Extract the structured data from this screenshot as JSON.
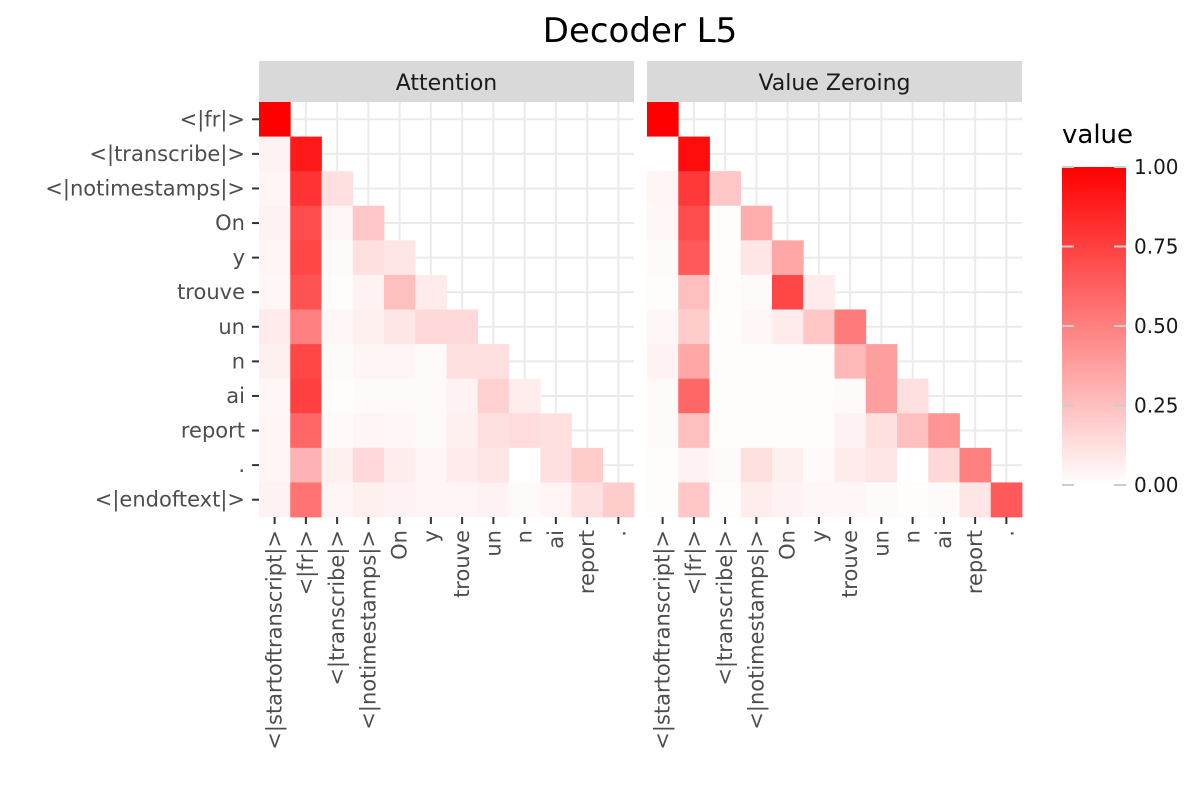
{
  "chart_data": {
    "type": "heatmap",
    "title": "Decoder L5",
    "legend_title": "value",
    "legend_ticks": [
      "1.00",
      "0.75",
      "0.50",
      "0.25",
      "0.00"
    ],
    "legend_tick_values": [
      1.0,
      0.75,
      0.5,
      0.25,
      0.0
    ],
    "color_low": "#ffffff",
    "color_high": "#ff0000",
    "value_range": [
      0,
      1
    ],
    "y_labels": [
      "<|fr|>",
      "<|transcribe|>",
      "<|notimestamps|>",
      "On",
      "y",
      "trouve",
      "un",
      "n",
      "ai",
      "report",
      ".",
      "<|endoftext|>"
    ],
    "x_labels": [
      "<|startoftranscript|>",
      "<|fr|>",
      "<|transcribe|>",
      "<|notimestamps|>",
      "On",
      "y",
      "trouve",
      "un",
      "n",
      "ai",
      "report",
      "."
    ],
    "panels": [
      {
        "name": "Attention",
        "values": [
          [
            1.0
          ],
          [
            0.05,
            0.9
          ],
          [
            0.04,
            0.8,
            0.12
          ],
          [
            0.05,
            0.7,
            0.03,
            0.22
          ],
          [
            0.04,
            0.72,
            0.02,
            0.12,
            0.1
          ],
          [
            0.03,
            0.68,
            0.01,
            0.05,
            0.25,
            0.08
          ],
          [
            0.08,
            0.5,
            0.03,
            0.06,
            0.1,
            0.15,
            0.15
          ],
          [
            0.06,
            0.72,
            0.02,
            0.04,
            0.04,
            0.02,
            0.12,
            0.12
          ],
          [
            0.03,
            0.75,
            0.01,
            0.02,
            0.02,
            0.02,
            0.05,
            0.18,
            0.07
          ],
          [
            0.04,
            0.6,
            0.02,
            0.04,
            0.03,
            0.02,
            0.06,
            0.12,
            0.14,
            0.12
          ],
          [
            0.04,
            0.3,
            0.06,
            0.15,
            0.07,
            0.04,
            0.08,
            0.1,
            0.0,
            0.12,
            0.2
          ],
          [
            0.05,
            0.55,
            0.04,
            0.06,
            0.05,
            0.04,
            0.04,
            0.05,
            0.02,
            0.04,
            0.12,
            0.2
          ]
        ]
      },
      {
        "name": "Value Zeroing",
        "values": [
          [
            1.0
          ],
          [
            0.0,
            0.95
          ],
          [
            0.04,
            0.78,
            0.22
          ],
          [
            0.03,
            0.7,
            0.01,
            0.32
          ],
          [
            0.02,
            0.65,
            0.01,
            0.1,
            0.35
          ],
          [
            0.01,
            0.25,
            0.01,
            0.02,
            0.72,
            0.08
          ],
          [
            0.03,
            0.2,
            0.01,
            0.03,
            0.08,
            0.22,
            0.52
          ],
          [
            0.05,
            0.35,
            0.01,
            0.01,
            0.01,
            0.01,
            0.28,
            0.38
          ],
          [
            0.02,
            0.6,
            0.01,
            0.01,
            0.01,
            0.01,
            0.02,
            0.38,
            0.12
          ],
          [
            0.02,
            0.25,
            0.01,
            0.01,
            0.01,
            0.01,
            0.05,
            0.12,
            0.25,
            0.42
          ],
          [
            0.01,
            0.05,
            0.02,
            0.12,
            0.06,
            0.02,
            0.08,
            0.1,
            0.0,
            0.15,
            0.5
          ],
          [
            0.01,
            0.22,
            0.01,
            0.07,
            0.05,
            0.03,
            0.03,
            0.02,
            0.01,
            0.02,
            0.1,
            0.65
          ]
        ]
      }
    ]
  }
}
